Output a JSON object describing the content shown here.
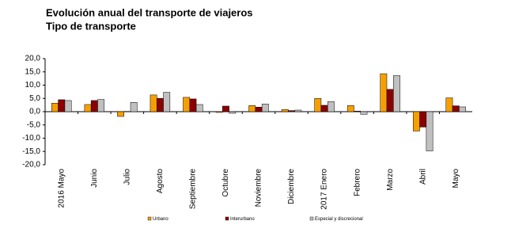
{
  "chart_data": {
    "type": "bar",
    "title": "Evolución anual del transporte de viajeros",
    "subtitle": "Tipo de transporte",
    "categories": [
      "2016 Mayo",
      "Junio",
      "Julio",
      "Agosto",
      "Septiembre",
      "Octubre",
      "Noviembre",
      "Diciembre",
      "2017 Enero",
      "Febrero",
      "Marzo",
      "Abril",
      "Mayo"
    ],
    "series": [
      {
        "name": "Urbano",
        "color": "#f5a000",
        "values": [
          3.2,
          2.7,
          -1.8,
          6.3,
          5.4,
          -0.3,
          2.3,
          0.8,
          5.0,
          2.3,
          14.3,
          -7.3,
          5.2
        ]
      },
      {
        "name": "Interurbano",
        "color": "#8b0000",
        "values": [
          4.5,
          4.2,
          0.1,
          5.0,
          4.8,
          2.1,
          1.7,
          0.4,
          2.4,
          0.2,
          8.4,
          -5.8,
          2.2
        ]
      },
      {
        "name": "Especial y discrecional",
        "color": "#c0c0c0",
        "values": [
          4.2,
          4.6,
          3.5,
          7.3,
          2.7,
          -0.6,
          2.9,
          0.6,
          3.8,
          -1.0,
          13.6,
          -14.8,
          1.8
        ]
      }
    ],
    "ylim": [
      -20,
      20
    ],
    "yticks": [
      {
        "value": -20,
        "label": "-20,0"
      },
      {
        "value": -15,
        "label": "-15,0"
      },
      {
        "value": -10,
        "label": "-10,0"
      },
      {
        "value": -5,
        "label": "-5,0"
      },
      {
        "value": 0,
        "label": "0,0"
      },
      {
        "value": 5,
        "label": "5,0"
      },
      {
        "value": 10,
        "label": "10,0"
      },
      {
        "value": 15,
        "label": "15,0"
      },
      {
        "value": 20,
        "label": "20,0"
      }
    ],
    "grid": false
  }
}
